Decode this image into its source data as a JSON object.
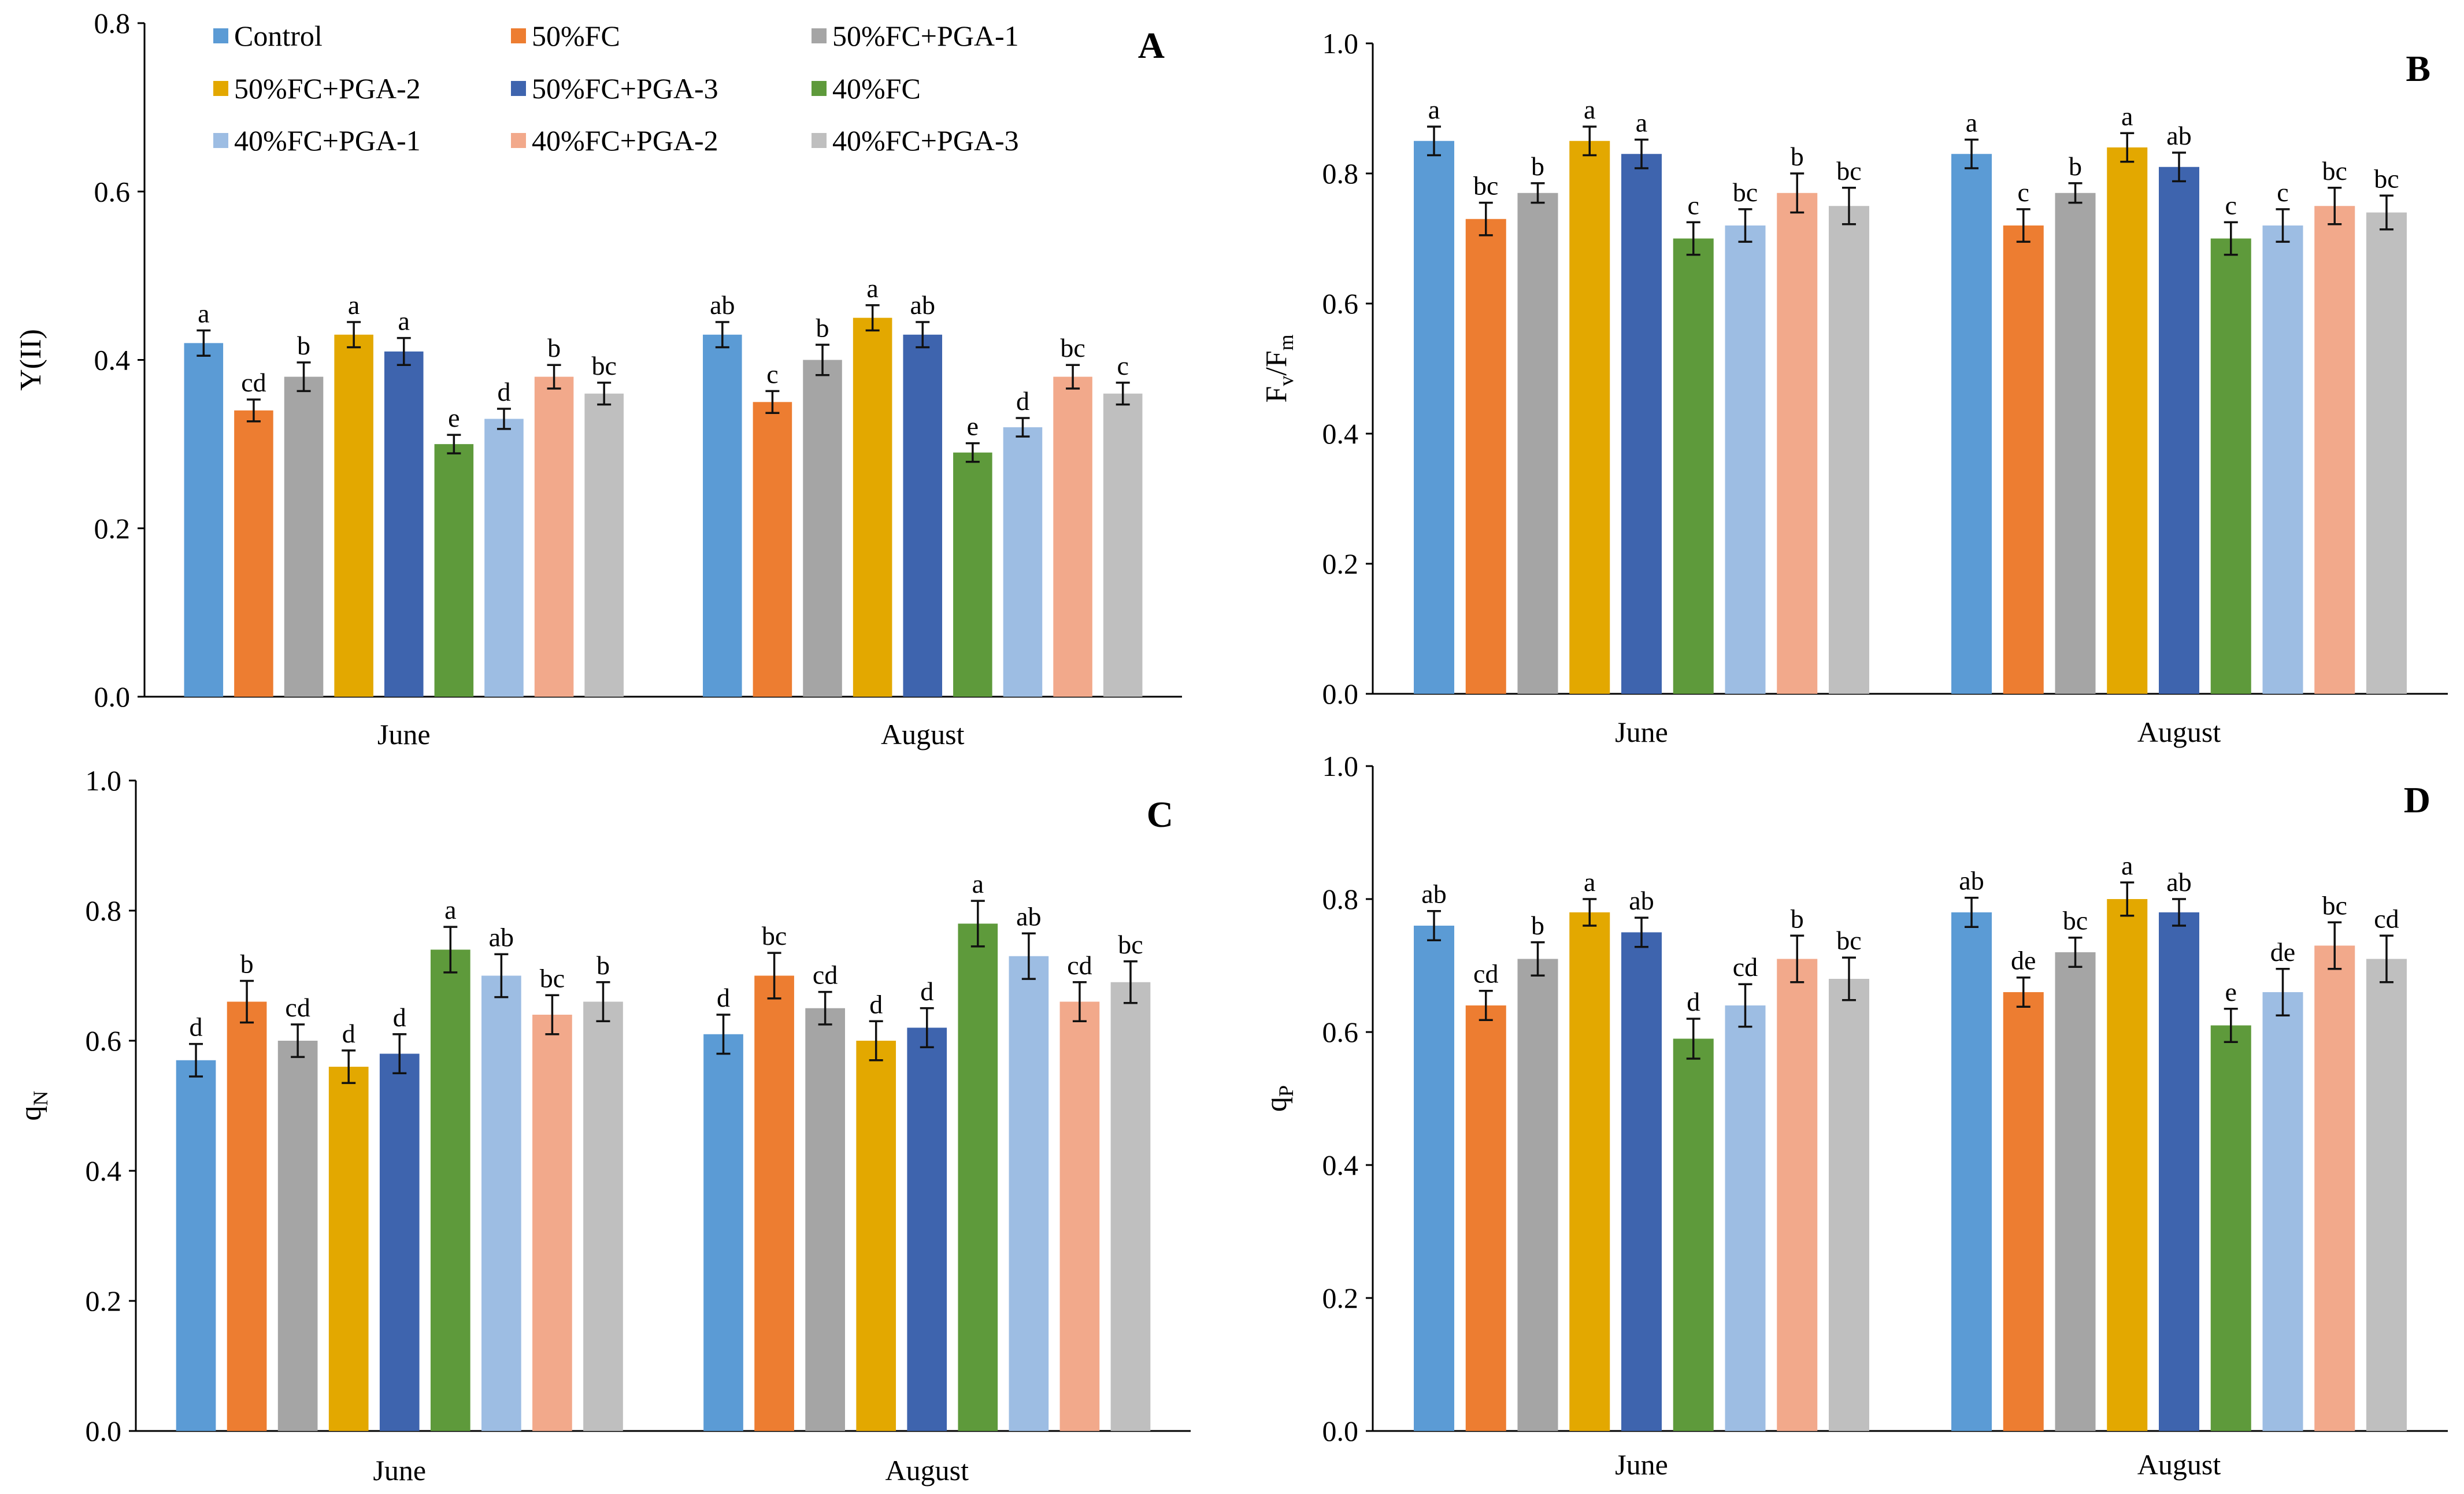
{
  "legend": [
    "Control",
    "50%FC",
    "50%FC+PGA-1",
    "50%FC+PGA-2",
    "50%FC+PGA-3",
    "40%FC",
    "40%FC+PGA-1",
    "40%FC+PGA-2",
    "40%FC+PGA-3"
  ],
  "colors": [
    "#5B9BD5",
    "#ED7D31",
    "#A5A5A5",
    "#E3A800",
    "#3E64AE",
    "#5E9A3B",
    "#9DBDE3",
    "#F2A98B",
    "#BFBFBF"
  ],
  "chart_data": [
    {
      "type": "bar",
      "panel": "A",
      "ylabel": "Y(II)",
      "ylim": [
        0,
        0.8
      ],
      "yticks": [
        "0.0",
        "0.2",
        "0.4",
        "0.6",
        "0.8"
      ],
      "categories": [
        "June",
        "August"
      ],
      "series": [
        {
          "name": "Control",
          "values": [
            0.42,
            0.43
          ],
          "errors": [
            0.015,
            0.015
          ],
          "letters": [
            "a",
            "ab"
          ]
        },
        {
          "name": "50%FC",
          "values": [
            0.34,
            0.35
          ],
          "errors": [
            0.013,
            0.013
          ],
          "letters": [
            "cd",
            "c"
          ]
        },
        {
          "name": "50%FC+PGA-1",
          "values": [
            0.38,
            0.4
          ],
          "errors": [
            0.017,
            0.018
          ],
          "letters": [
            "b",
            "b"
          ]
        },
        {
          "name": "50%FC+PGA-2",
          "values": [
            0.43,
            0.45
          ],
          "errors": [
            0.015,
            0.015
          ],
          "letters": [
            "a",
            "a"
          ]
        },
        {
          "name": "50%FC+PGA-3",
          "values": [
            0.41,
            0.43
          ],
          "errors": [
            0.016,
            0.015
          ],
          "letters": [
            "a",
            "ab"
          ]
        },
        {
          "name": "40%FC",
          "values": [
            0.3,
            0.29
          ],
          "errors": [
            0.011,
            0.011
          ],
          "letters": [
            "e",
            "e"
          ]
        },
        {
          "name": "40%FC+PGA-1",
          "values": [
            0.33,
            0.32
          ],
          "errors": [
            0.012,
            0.011
          ],
          "letters": [
            "d",
            "d"
          ]
        },
        {
          "name": "40%FC+PGA-2",
          "values": [
            0.38,
            0.38
          ],
          "errors": [
            0.014,
            0.014
          ],
          "letters": [
            "b",
            "bc"
          ]
        },
        {
          "name": "40%FC+PGA-3",
          "values": [
            0.36,
            0.36
          ],
          "errors": [
            0.013,
            0.013
          ],
          "letters": [
            "bc",
            "c"
          ]
        }
      ]
    },
    {
      "type": "bar",
      "panel": "B",
      "ylabel": "Fv/Fm",
      "ylabel_main": "F",
      "ylabel_sub1": "v",
      "ylabel_slash": "/F",
      "ylabel_sub2": "m",
      "ylim": [
        0,
        1.0
      ],
      "yticks": [
        "0.0",
        "0.2",
        "0.4",
        "0.6",
        "0.8",
        "1.0"
      ],
      "categories": [
        "June",
        "August"
      ],
      "series": [
        {
          "name": "Control",
          "values": [
            0.85,
            0.83
          ],
          "errors": [
            0.022,
            0.022
          ],
          "letters": [
            "a",
            "a"
          ]
        },
        {
          "name": "50%FC",
          "values": [
            0.73,
            0.72
          ],
          "errors": [
            0.025,
            0.025
          ],
          "letters": [
            "bc",
            "c"
          ]
        },
        {
          "name": "50%FC+PGA-1",
          "values": [
            0.77,
            0.77
          ],
          "errors": [
            0.015,
            0.015
          ],
          "letters": [
            "b",
            "b"
          ]
        },
        {
          "name": "50%FC+PGA-2",
          "values": [
            0.85,
            0.84
          ],
          "errors": [
            0.022,
            0.022
          ],
          "letters": [
            "a",
            "a"
          ]
        },
        {
          "name": "50%FC+PGA-3",
          "values": [
            0.83,
            0.81
          ],
          "errors": [
            0.022,
            0.022
          ],
          "letters": [
            "a",
            "ab"
          ]
        },
        {
          "name": "40%FC",
          "values": [
            0.7,
            0.7
          ],
          "errors": [
            0.025,
            0.025
          ],
          "letters": [
            "c",
            "c"
          ]
        },
        {
          "name": "40%FC+PGA-1",
          "values": [
            0.72,
            0.72
          ],
          "errors": [
            0.025,
            0.025
          ],
          "letters": [
            "bc",
            "c"
          ]
        },
        {
          "name": "40%FC+PGA-2",
          "values": [
            0.77,
            0.75
          ],
          "errors": [
            0.03,
            0.028
          ],
          "letters": [
            "b",
            "bc"
          ]
        },
        {
          "name": "40%FC+PGA-3",
          "values": [
            0.75,
            0.74
          ],
          "errors": [
            0.028,
            0.026
          ],
          "letters": [
            "bc",
            "bc"
          ]
        }
      ]
    },
    {
      "type": "bar",
      "panel": "C",
      "ylabel": "qN",
      "ylabel_main": "q",
      "ylabel_sub1": "N",
      "ylim": [
        0,
        1.0
      ],
      "yticks": [
        "0.0",
        "0.2",
        "0.4",
        "0.6",
        "0.8",
        "1.0"
      ],
      "categories": [
        "June",
        "August"
      ],
      "series": [
        {
          "name": "Control",
          "values": [
            0.57,
            0.61
          ],
          "errors": [
            0.025,
            0.03
          ],
          "letters": [
            "d",
            "d"
          ]
        },
        {
          "name": "50%FC",
          "values": [
            0.66,
            0.7
          ],
          "errors": [
            0.032,
            0.035
          ],
          "letters": [
            "b",
            "bc"
          ]
        },
        {
          "name": "50%FC+PGA-1",
          "values": [
            0.6,
            0.65
          ],
          "errors": [
            0.025,
            0.025
          ],
          "letters": [
            "cd",
            "cd"
          ]
        },
        {
          "name": "50%FC+PGA-2",
          "values": [
            0.56,
            0.6
          ],
          "errors": [
            0.025,
            0.03
          ],
          "letters": [
            "d",
            "d"
          ]
        },
        {
          "name": "50%FC+PGA-3",
          "values": [
            0.58,
            0.62
          ],
          "errors": [
            0.03,
            0.03
          ],
          "letters": [
            "d",
            "d"
          ]
        },
        {
          "name": "40%FC",
          "values": [
            0.74,
            0.78
          ],
          "errors": [
            0.035,
            0.035
          ],
          "letters": [
            "a",
            "a"
          ]
        },
        {
          "name": "40%FC+PGA-1",
          "values": [
            0.7,
            0.73
          ],
          "errors": [
            0.033,
            0.035
          ],
          "letters": [
            "ab",
            "ab"
          ]
        },
        {
          "name": "40%FC+PGA-2",
          "values": [
            0.64,
            0.66
          ],
          "errors": [
            0.03,
            0.03
          ],
          "letters": [
            "bc",
            "cd"
          ]
        },
        {
          "name": "40%FC+PGA-3",
          "values": [
            0.66,
            0.69
          ],
          "errors": [
            0.03,
            0.032
          ],
          "letters": [
            "b",
            "bc"
          ]
        }
      ]
    },
    {
      "type": "bar",
      "panel": "D",
      "ylabel": "qP",
      "ylabel_main": "q",
      "ylabel_sub1": "P",
      "ylim": [
        0,
        1.0
      ],
      "yticks": [
        "0.0",
        "0.2",
        "0.4",
        "0.6",
        "0.8",
        "1.0"
      ],
      "categories": [
        "June",
        "August"
      ],
      "series": [
        {
          "name": "Control",
          "values": [
            0.76,
            0.78
          ],
          "errors": [
            0.022,
            0.022
          ],
          "letters": [
            "ab",
            "ab"
          ]
        },
        {
          "name": "50%FC",
          "values": [
            0.64,
            0.66
          ],
          "errors": [
            0.022,
            0.022
          ],
          "letters": [
            "cd",
            "de"
          ]
        },
        {
          "name": "50%FC+PGA-1",
          "values": [
            0.71,
            0.72
          ],
          "errors": [
            0.025,
            0.022
          ],
          "letters": [
            "b",
            "bc"
          ]
        },
        {
          "name": "50%FC+PGA-2",
          "values": [
            0.78,
            0.8
          ],
          "errors": [
            0.02,
            0.025
          ],
          "letters": [
            "a",
            "a"
          ]
        },
        {
          "name": "50%FC+PGA-3",
          "values": [
            0.75,
            0.78
          ],
          "errors": [
            0.022,
            0.02
          ],
          "letters": [
            "ab",
            "ab"
          ]
        },
        {
          "name": "40%FC",
          "values": [
            0.59,
            0.61
          ],
          "errors": [
            0.03,
            0.025
          ],
          "letters": [
            "d",
            "e"
          ]
        },
        {
          "name": "40%FC+PGA-1",
          "values": [
            0.64,
            0.66
          ],
          "errors": [
            0.032,
            0.035
          ],
          "letters": [
            "cd",
            "de"
          ]
        },
        {
          "name": "40%FC+PGA-2",
          "values": [
            0.71,
            0.73
          ],
          "errors": [
            0.035,
            0.035
          ],
          "letters": [
            "b",
            "bc"
          ]
        },
        {
          "name": "40%FC+PGA-3",
          "values": [
            0.68,
            0.71
          ],
          "errors": [
            0.032,
            0.035
          ],
          "letters": [
            "bc",
            "cd"
          ]
        }
      ]
    }
  ]
}
